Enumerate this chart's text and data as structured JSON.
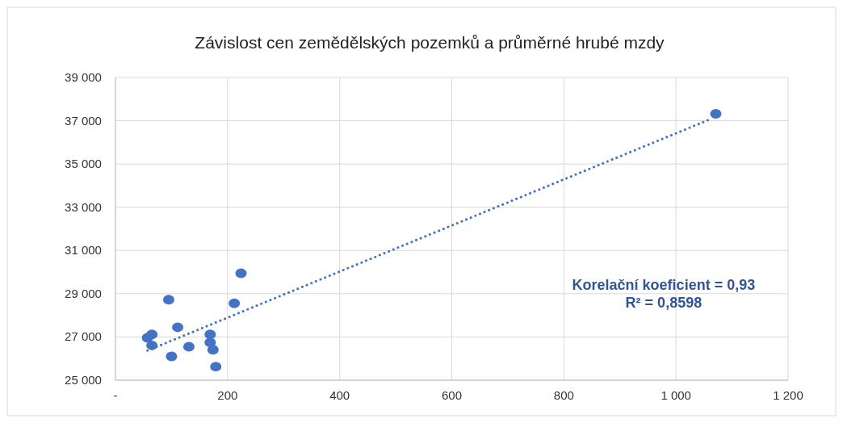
{
  "chart_data": {
    "type": "scatter",
    "title": "Závislost cen zemědělských pozemků a průměrné hrubé mzdy",
    "xlim": [
      0,
      1200
    ],
    "xticks": [
      {
        "value": 0,
        "label": "-"
      },
      200,
      400,
      600,
      800,
      {
        "value": 1000,
        "label": "1 000"
      },
      {
        "value": 1200,
        "label": "1 200"
      }
    ],
    "ylim": [
      25000,
      39000
    ],
    "yticks": [
      {
        "value": 25000,
        "label": "25 000"
      },
      {
        "value": 27000,
        "label": "27 000"
      },
      {
        "value": 29000,
        "label": "29 000"
      },
      {
        "value": 31000,
        "label": "31 000"
      },
      {
        "value": 33000,
        "label": "33 000"
      },
      {
        "value": 35000,
        "label": "35 000"
      },
      {
        "value": 37000,
        "label": "37 000"
      },
      {
        "value": 39000,
        "label": "39 000"
      }
    ],
    "grid": true,
    "series": [
      {
        "color": "#4472c4",
        "marker": "circle",
        "x": [
          57,
          65,
          65,
          95,
          100,
          111,
          131,
          169,
          169,
          174,
          179,
          212,
          224,
          1071
        ],
        "values": [
          26960,
          27120,
          26610,
          28720,
          26100,
          27450,
          26550,
          27120,
          26750,
          26410,
          25630,
          28560,
          29950,
          37320
        ]
      },
      {
        "type": "line",
        "color": "#4472c4",
        "line_style": "dotted",
        "x": [
          57,
          1064
        ],
        "values": [
          26370,
          37100
        ]
      }
    ],
    "annotations": [
      "Korelační koeficient = 0,93",
      "R² = 0,8598"
    ]
  }
}
